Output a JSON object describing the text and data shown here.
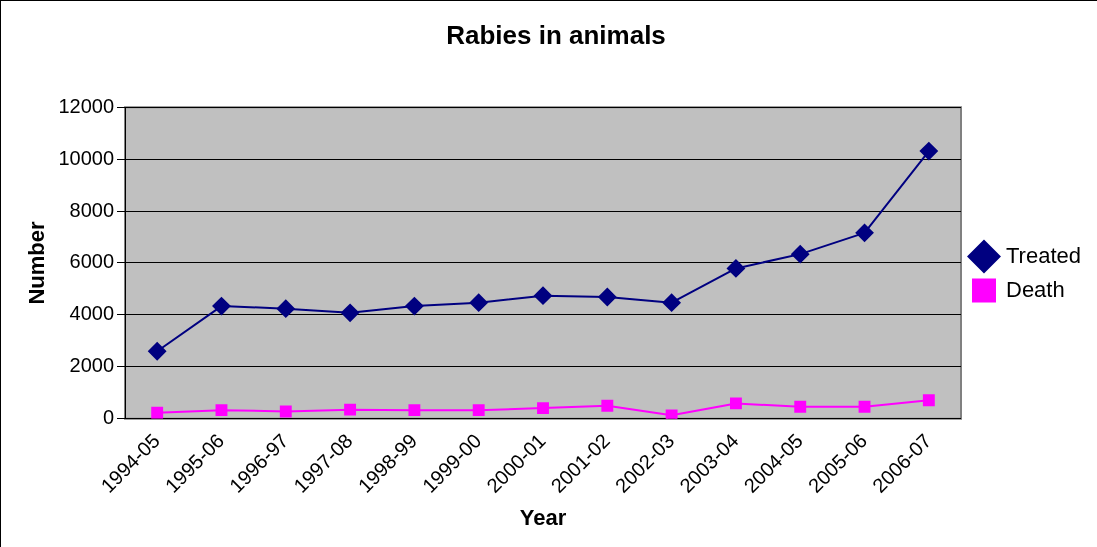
{
  "chart_data": {
    "type": "line",
    "title": "Rabies in animals",
    "xlabel": "Year",
    "ylabel": "Number",
    "categories": [
      "1994-05",
      "1995-06",
      "1996-97",
      "1997-08",
      "1998-99",
      "1999-00",
      "2000-01",
      "2001-02",
      "2002-03",
      "2003-04",
      "2004-05",
      "2005-06",
      "2006-07"
    ],
    "series": [
      {
        "name": "Treated",
        "color": "#000080",
        "marker": "diamond",
        "values": [
          2600,
          4340,
          4240,
          4080,
          4340,
          4470,
          4740,
          4690,
          4470,
          5790,
          6340,
          7160,
          10310
        ]
      },
      {
        "name": "Death",
        "color": "#ff00ff",
        "marker": "square",
        "values": [
          230,
          330,
          280,
          350,
          330,
          330,
          410,
          500,
          130,
          590,
          460,
          460,
          710
        ]
      }
    ],
    "ylim": [
      0,
      12000
    ],
    "yticks": [
      0,
      2000,
      4000,
      6000,
      8000,
      10000,
      12000
    ],
    "grid": "y",
    "legend": "right",
    "line_style": "solid"
  }
}
